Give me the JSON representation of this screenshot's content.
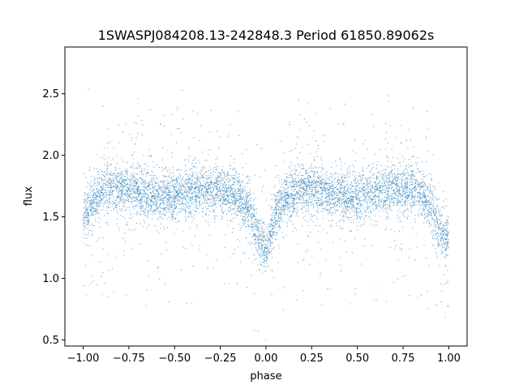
{
  "chart_data": {
    "type": "scatter",
    "title": "1SWASPJ084208.13-242848.3 Period 61850.89062s",
    "xlabel": "phase",
    "ylabel": "flux",
    "xlim": [
      -1.1,
      1.1
    ],
    "ylim": [
      0.45,
      2.88
    ],
    "x_ticks": [
      -1.0,
      -0.75,
      -0.5,
      -0.25,
      0.0,
      0.25,
      0.5,
      0.75,
      1.0
    ],
    "x_tick_labels": [
      "−1.00",
      "−0.75",
      "−0.50",
      "−0.25",
      "0.00",
      "0.25",
      "0.50",
      "0.75",
      "1.00"
    ],
    "y_ticks": [
      0.5,
      1.0,
      1.5,
      2.0,
      2.5
    ],
    "y_tick_labels": [
      "0.5",
      "1.0",
      "1.5",
      "2.0",
      "2.5"
    ],
    "grid": false,
    "legend": "none",
    "point_color": "#1f77b4",
    "light_curve": {
      "description_units": "phase vs median flux",
      "phase": [
        -1.0,
        -0.95,
        -0.9,
        -0.85,
        -0.8,
        -0.75,
        -0.7,
        -0.65,
        -0.6,
        -0.55,
        -0.5,
        -0.45,
        -0.4,
        -0.35,
        -0.3,
        -0.25,
        -0.2,
        -0.15,
        -0.1,
        -0.075,
        -0.05,
        -0.025,
        0.0,
        0.025,
        0.05,
        0.1,
        0.15,
        0.2,
        0.25,
        0.3,
        0.35,
        0.4,
        0.45,
        0.5,
        0.55,
        0.6,
        0.65,
        0.7,
        0.75,
        0.8,
        0.85,
        0.9,
        0.925,
        0.95,
        0.975,
        1.0
      ],
      "flux": [
        1.48,
        1.62,
        1.7,
        1.73,
        1.74,
        1.72,
        1.7,
        1.68,
        1.66,
        1.66,
        1.67,
        1.69,
        1.71,
        1.72,
        1.73,
        1.72,
        1.7,
        1.66,
        1.58,
        1.5,
        1.38,
        1.28,
        1.22,
        1.35,
        1.52,
        1.64,
        1.7,
        1.73,
        1.74,
        1.72,
        1.7,
        1.68,
        1.66,
        1.66,
        1.68,
        1.7,
        1.72,
        1.73,
        1.73,
        1.72,
        1.7,
        1.6,
        1.5,
        1.38,
        1.3,
        1.35
      ]
    }
  }
}
